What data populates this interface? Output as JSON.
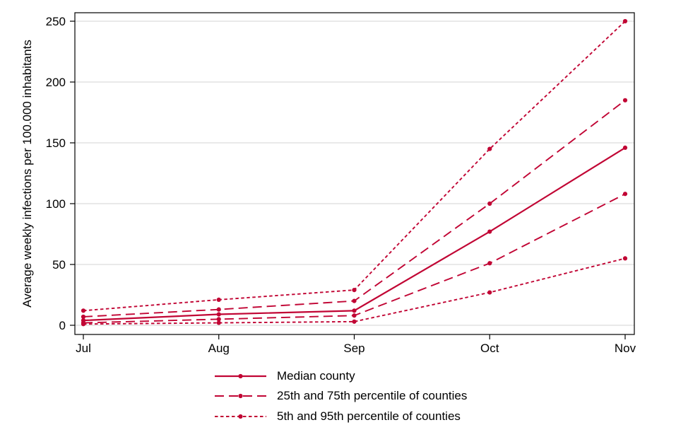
{
  "chart_data": {
    "type": "line",
    "title": "",
    "xlabel": "",
    "ylabel": "Average weekly infections per 100.000 inhabitants",
    "categories": [
      "Jul",
      "Aug",
      "Sep",
      "Oct",
      "Nov"
    ],
    "ylim": [
      0,
      250
    ],
    "yticks": [
      0,
      50,
      100,
      150,
      200,
      250
    ],
    "grid": "horizontal gridlines only",
    "legend_position": "bottom-center",
    "colors": {
      "line": "#c10534",
      "grid": "#e2e2e2",
      "axis": "#000000",
      "text": "#000000",
      "background": "#ffffff"
    },
    "series": [
      {
        "name": "95th percentile of counties",
        "style": "dotted",
        "values": [
          12,
          21,
          29,
          145,
          250
        ]
      },
      {
        "name": "75th percentile of counties",
        "style": "dashed",
        "values": [
          7,
          13,
          20,
          100,
          185
        ]
      },
      {
        "name": "Median county",
        "style": "solid",
        "values": [
          4,
          9,
          12,
          77,
          146
        ]
      },
      {
        "name": "25th percentile of counties",
        "style": "dashed",
        "values": [
          2,
          5,
          8,
          51,
          108
        ]
      },
      {
        "name": "5th percentile of counties",
        "style": "dotted",
        "values": [
          1,
          2,
          3,
          27,
          55
        ]
      }
    ],
    "legend": {
      "entries": [
        {
          "label": "Median county",
          "style": "solid"
        },
        {
          "label": "25th and 75th percentile of counties",
          "style": "dashed"
        },
        {
          "label": "5th and 95th percentile of counties",
          "style": "dotted"
        }
      ]
    }
  }
}
